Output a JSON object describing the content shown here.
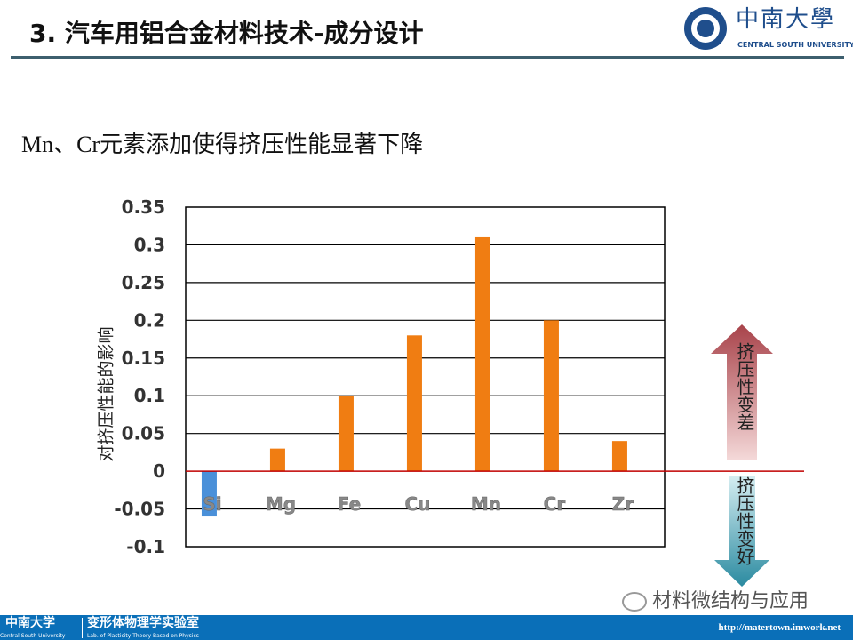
{
  "header": {
    "title": "3. 汽车用铝合金材料技术-成分设计",
    "logo_cn": "中南大學",
    "logo_en": "CENTRAL SOUTH UNIVERSITY"
  },
  "subtitle": "Mn、Cr元素添加使得挤压性能显著下降",
  "chart_data": {
    "type": "bar",
    "categories": [
      "Si",
      "Mg",
      "Fe",
      "Cu",
      "Mn",
      "Cr",
      "Zr"
    ],
    "values": [
      -0.06,
      0.03,
      0.1,
      0.18,
      0.31,
      0.2,
      0.04
    ],
    "ylabel": "对挤压性能的影响",
    "ylim": [
      -0.1,
      0.35
    ],
    "yticks": [
      "0.35",
      "0.3",
      "0.25",
      "0.2",
      "0.15",
      "0.1",
      "0.05",
      "0",
      "-0.05",
      "-0.1"
    ],
    "colors": {
      "positive": "#f07d12",
      "negative": "#4a90d9",
      "zero_line": "#c00000"
    }
  },
  "annotations": {
    "up": "挤压性变差",
    "down": "挤压性变好"
  },
  "footer": {
    "univ": "中南大学",
    "univ_en": "Central South University",
    "lab": "变形体物理学实验室",
    "lab_en": "Lab. of Plasticity Theory Based on Physics",
    "url": "http://matertown.imwork.net"
  },
  "watermark": "材料微结构与应用"
}
